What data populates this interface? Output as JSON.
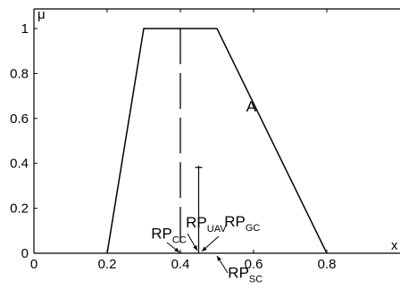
{
  "chart_data": {
    "type": "line",
    "ylabel": "μ",
    "xlabel": "x",
    "xlim": [
      0,
      1
    ],
    "ylim": [
      0,
      1
    ],
    "xticks": [
      "0",
      "0.2",
      "0.4",
      "0.6",
      "0.8"
    ],
    "yticks": [
      "0",
      "0.2",
      "0.4",
      "0.6",
      "0.8",
      "1"
    ],
    "series": [
      {
        "x": [
          0.2,
          0.3,
          0.5,
          0.8
        ],
        "y": [
          0,
          1,
          1,
          0
        ]
      }
    ],
    "verticals": [
      {
        "x": 0.4,
        "y_top": 1.0,
        "style": "dashed"
      },
      {
        "x": 0.45,
        "y_top": 0.39,
        "style": "solid-with-crossbar"
      }
    ],
    "annotations": {
      "area_label": {
        "text": "A",
        "x": 0.58,
        "y": 0.63
      },
      "rp_uav": {
        "main": "RP",
        "sub": "UAV",
        "x": 0.415,
        "y": 0.115
      },
      "rp_cc": {
        "main": "RP",
        "sub": "CC",
        "x": 0.32,
        "y": 0.065
      },
      "rp_gc": {
        "main": "RP",
        "sub": "GC",
        "x": 0.52,
        "y": 0.12
      },
      "rp_sc": {
        "main": "RP",
        "sub": "SC",
        "x": 0.53,
        "y": -0.11
      }
    }
  }
}
